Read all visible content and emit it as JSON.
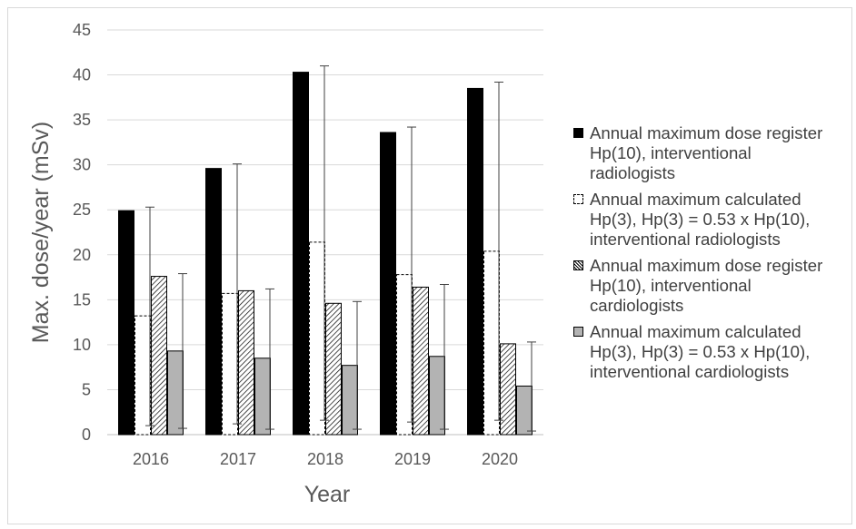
{
  "chart_data": {
    "type": "bar",
    "title": "",
    "xlabel": "Year",
    "ylabel": "Max. dose/year (mSv)",
    "ylim": [
      0,
      45
    ],
    "yticks": [
      0,
      5,
      10,
      15,
      20,
      25,
      30,
      35,
      40,
      45
    ],
    "grid": "horizontal",
    "legend_position": "right",
    "categories": [
      "2016",
      "2017",
      "2018",
      "2019",
      "2020"
    ],
    "series": [
      {
        "name": "Annual maximum dose register Hp(10), interventional radiologists",
        "name_lines": [
          "Annual maximum dose register",
          "Hp(10), interventional",
          "radiologists"
        ],
        "style": "solid-black",
        "values": [
          24.9,
          29.6,
          40.3,
          33.6,
          38.5
        ]
      },
      {
        "name": "Annual maximum calculated Hp(3), Hp(3) = 0.53 x Hp(10), interventional radiologists",
        "name_lines": [
          "Annual maximum calculated",
          "Hp(3), Hp(3) = 0.53 x Hp(10),",
          "interventional radiologists"
        ],
        "style": "dashed-white",
        "values": [
          13.2,
          15.7,
          21.4,
          17.8,
          20.4
        ],
        "error_high": [
          25.3,
          30.1,
          41.0,
          34.2,
          39.2
        ],
        "error_low": [
          1.0,
          1.2,
          1.6,
          1.4,
          1.6
        ]
      },
      {
        "name": "Annual maximum dose register Hp(10), interventional cardiologists",
        "name_lines": [
          "Annual maximum dose register",
          "Hp(10), interventional",
          "cardiologists"
        ],
        "style": "hatched",
        "values": [
          17.6,
          16.0,
          14.6,
          16.4,
          10.1
        ]
      },
      {
        "name": "Annual maximum calculated Hp(3), Hp(3) = 0.53 x Hp(10), interventional cardiologists",
        "name_lines": [
          "Annual maximum calculated",
          "Hp(3), Hp(3) = 0.53 x Hp(10),",
          "interventional cardiologists"
        ],
        "style": "solid-gray",
        "values": [
          9.3,
          8.5,
          7.7,
          8.7,
          5.4
        ],
        "error_high": [
          17.9,
          16.2,
          14.8,
          16.7,
          10.3
        ],
        "error_low": [
          0.7,
          0.6,
          0.6,
          0.6,
          0.4
        ]
      }
    ]
  }
}
